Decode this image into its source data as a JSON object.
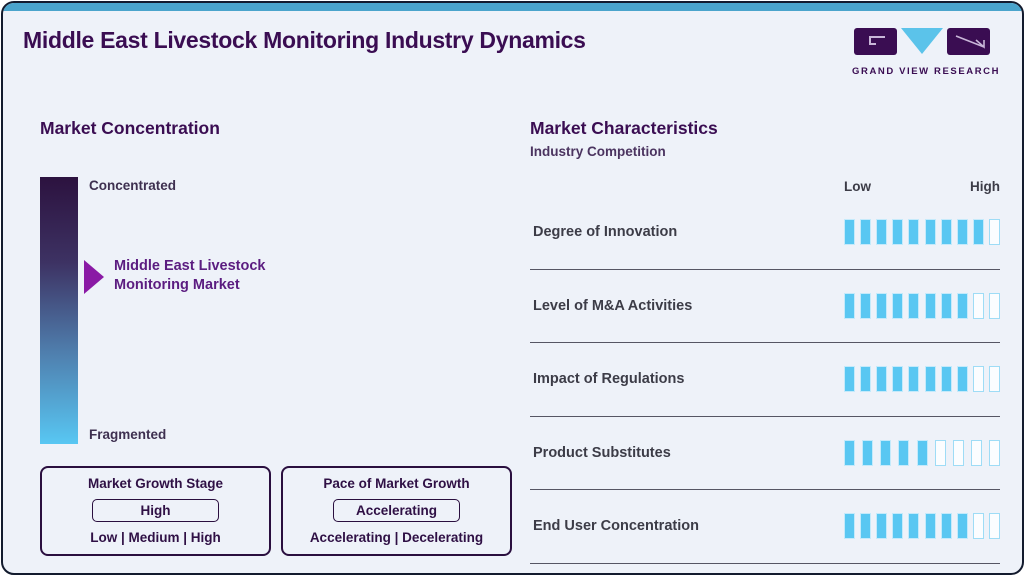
{
  "header": {
    "title": "Middle East Livestock Monitoring Industry Dynamics",
    "logo_text": "GRAND VIEW RESEARCH"
  },
  "market_concentration": {
    "heading": "Market Concentration",
    "top_label": "Concentrated",
    "bottom_label": "Fragmented",
    "pointer_line1": "Middle East Livestock",
    "pointer_line2": "Monitoring Market"
  },
  "growth_boxes": [
    {
      "title": "Market Growth Stage",
      "value": "High",
      "options": "Low | Medium | High"
    },
    {
      "title": "Pace of Market Growth",
      "value": "Accelerating",
      "options": "Accelerating | Decelerating"
    }
  ],
  "market_characteristics": {
    "heading": "Market Characteristics",
    "subheading": "Industry Competition",
    "scale_low": "Low",
    "scale_high": "High",
    "rows": [
      {
        "label": "Degree of Innovation",
        "filled": 9,
        "total": 10
      },
      {
        "label": "Level of M&A Activities",
        "filled": 8,
        "total": 10
      },
      {
        "label": "Impact of Regulations",
        "filled": 8,
        "total": 10
      },
      {
        "label": "Product Substitutes",
        "filled": 5,
        "total": 9
      },
      {
        "label": "End User Concentration",
        "filled": 8,
        "total": 10
      }
    ]
  },
  "colors": {
    "brand_purple": "#3a0d52",
    "accent_blue": "#59c7f2",
    "top_strip": "#4aa4cc",
    "pointer_purple": "#8a1aa5",
    "gradient_top": "#2c123f",
    "gradient_bottom": "#58c7f3"
  },
  "chart_data": {
    "type": "bar",
    "title": "Market Characteristics — Industry Competition",
    "subtitle": "Segment rating scale from Low to High",
    "categories": [
      "Degree of Innovation",
      "Level of M&A Activities",
      "Impact of Regulations",
      "Product Substitutes",
      "End User Concentration"
    ],
    "values": [
      9,
      8,
      8,
      5,
      8
    ],
    "totals": [
      10,
      10,
      10,
      9,
      10
    ],
    "xlabel": "",
    "ylabel": "",
    "scale_labels": [
      "Low",
      "High"
    ],
    "legend_position": "none",
    "extra": {
      "market_concentration_axis": [
        "Concentrated",
        "Fragmented"
      ],
      "market_position_label": "Middle East Livestock Monitoring Market",
      "market_growth_stage": "High",
      "pace_of_market_growth": "Accelerating"
    }
  }
}
